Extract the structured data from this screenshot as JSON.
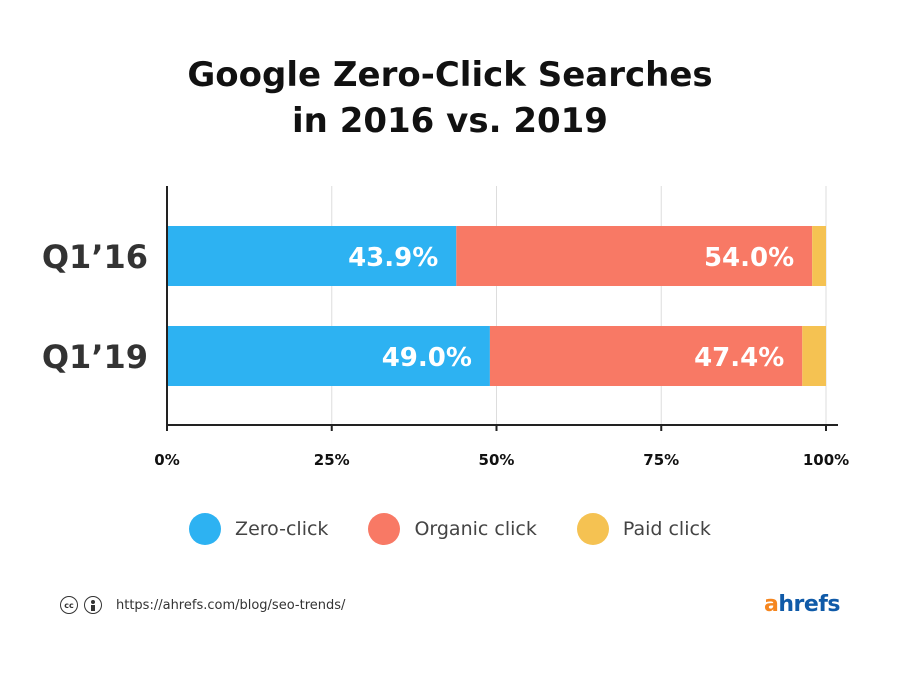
{
  "title": {
    "line1": "Google Zero-Click Searches",
    "line2": "in 2016 vs. 2019"
  },
  "chart_data": {
    "type": "bar",
    "orientation": "horizontal",
    "stacked": true,
    "categories": [
      "Q1’16",
      "Q1’19"
    ],
    "series": [
      {
        "name": "Zero-click",
        "values": [
          43.9,
          49.0
        ],
        "labels": [
          "43.9%",
          "49.0%"
        ],
        "color": "#2db2f2"
      },
      {
        "name": "Organic click",
        "values": [
          54.0,
          47.4
        ],
        "labels": [
          "54.0%",
          "47.4%"
        ],
        "color": "#f87965"
      },
      {
        "name": "Paid click",
        "values": [
          2.1,
          3.6
        ],
        "labels": [
          "",
          ""
        ],
        "color": "#f5c252"
      }
    ],
    "xlim": [
      0,
      100
    ],
    "xticks": [
      0,
      25,
      50,
      75,
      100
    ],
    "xtick_labels": [
      "0%",
      "25%",
      "50%",
      "75%",
      "100%"
    ],
    "grid": true,
    "legend_position": "bottom"
  },
  "legend": [
    {
      "label": "Zero-click",
      "color": "#2db2f2"
    },
    {
      "label": "Organic click",
      "color": "#f87965"
    },
    {
      "label": "Paid click",
      "color": "#f5c252"
    }
  ],
  "footer": {
    "cc_icon": "creative-commons-icon",
    "by_icon": "attribution-icon",
    "cc_text": "cc",
    "url": "https://ahrefs.com/blog/seo-trends/"
  },
  "logo": {
    "first": "a",
    "rest": "hrefs",
    "color_first": "#f5861f",
    "color_rest": "#0f5aa8"
  }
}
